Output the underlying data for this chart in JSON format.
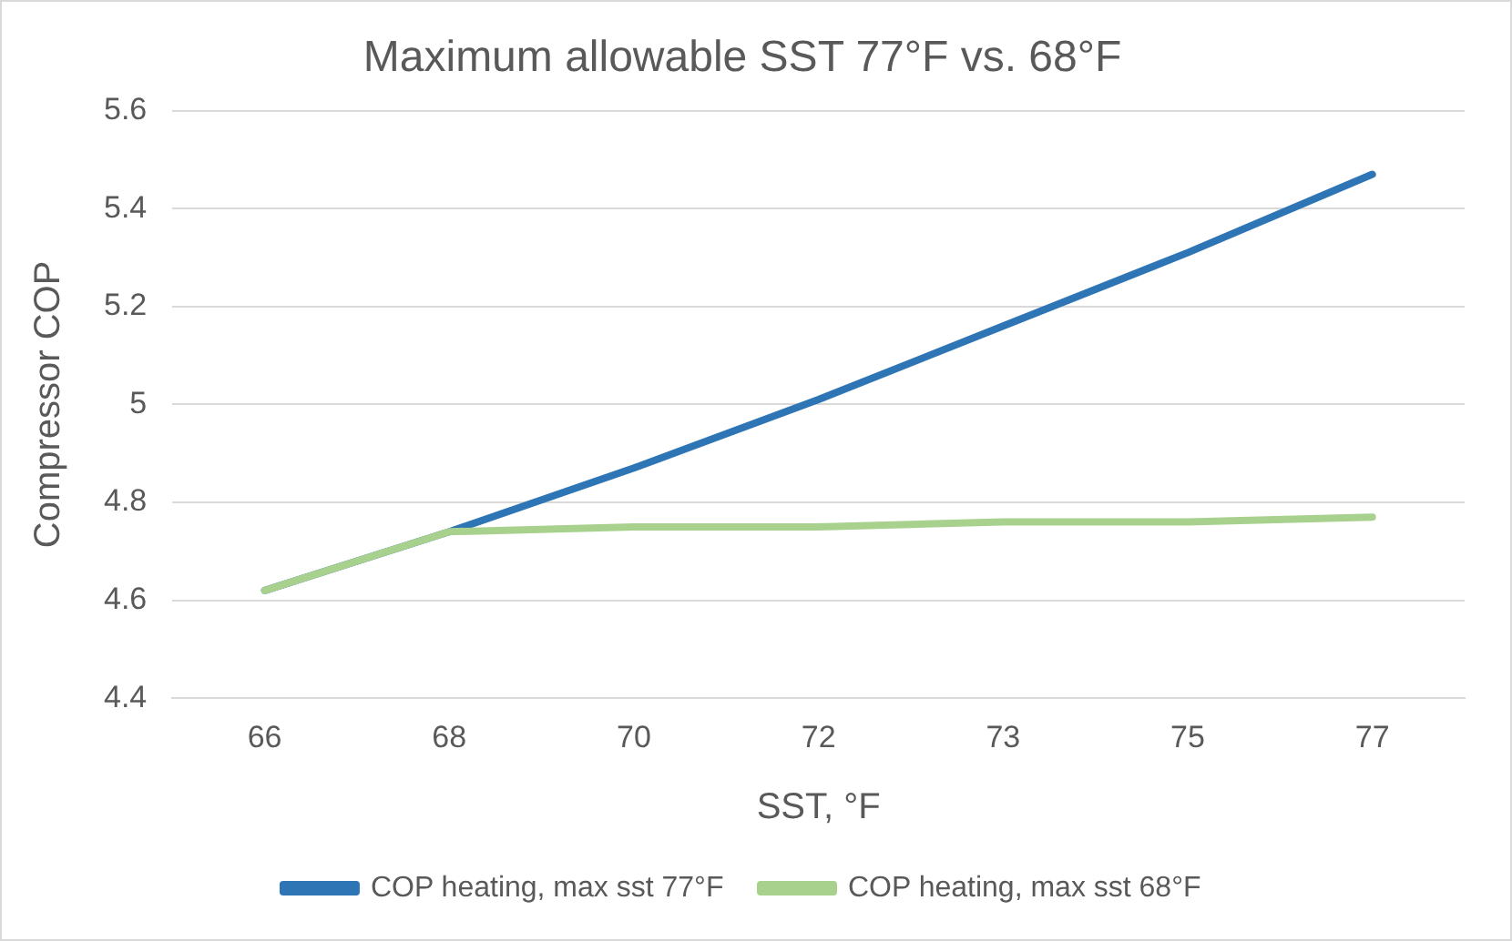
{
  "chart_data": {
    "type": "line",
    "title": "Maximum allowable SST 77°F vs. 68°F",
    "xlabel": "SST, °F",
    "ylabel": "Compressor COP",
    "categories": [
      "66",
      "68",
      "70",
      "72",
      "73",
      "75",
      "77"
    ],
    "series": [
      {
        "name": "COP heating, max sst 77°F",
        "color": "#2e75b6",
        "values": [
          4.62,
          4.74,
          4.87,
          5.01,
          5.16,
          5.31,
          5.47
        ]
      },
      {
        "name": "COP heating, max sst 68°F",
        "color": "#a9d18e",
        "values": [
          4.62,
          4.74,
          4.75,
          4.75,
          4.76,
          4.76,
          4.77
        ]
      }
    ],
    "ylim": [
      4.4,
      5.6
    ],
    "yticks": [
      4.4,
      4.6,
      4.8,
      5,
      5.2,
      5.4,
      5.6
    ],
    "grid": "y",
    "legend": "bottom",
    "marker": "none",
    "line_style": "solid"
  }
}
